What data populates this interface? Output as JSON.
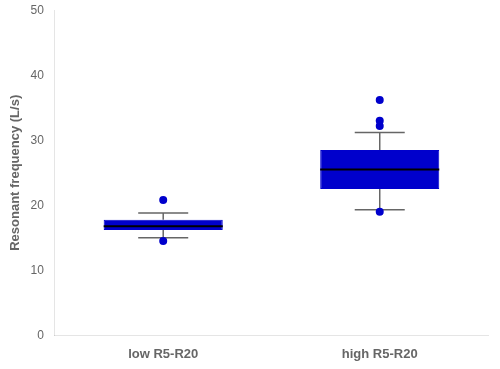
{
  "chart_data": {
    "type": "box",
    "categories": [
      "low R5-R20",
      "high R5-R20"
    ],
    "boxes": [
      {
        "q1": 16.2,
        "median": 16.8,
        "q3": 17.8,
        "whisker_low": 15.0,
        "whisker_high": 18.8,
        "fliers": [
          20.8,
          14.5
        ]
      },
      {
        "q1": 22.5,
        "median": 25.5,
        "q3": 28.5,
        "whisker_low": 19.3,
        "whisker_high": 31.2,
        "fliers": [
          19.0,
          32.2,
          33.0,
          36.2
        ]
      }
    ],
    "ylabel": "Resonant frequency (L/s)",
    "ylim": [
      0,
      50
    ],
    "yticks": [
      0,
      10,
      20,
      30,
      40,
      50
    ],
    "color": "#0000CC",
    "grid": false
  }
}
